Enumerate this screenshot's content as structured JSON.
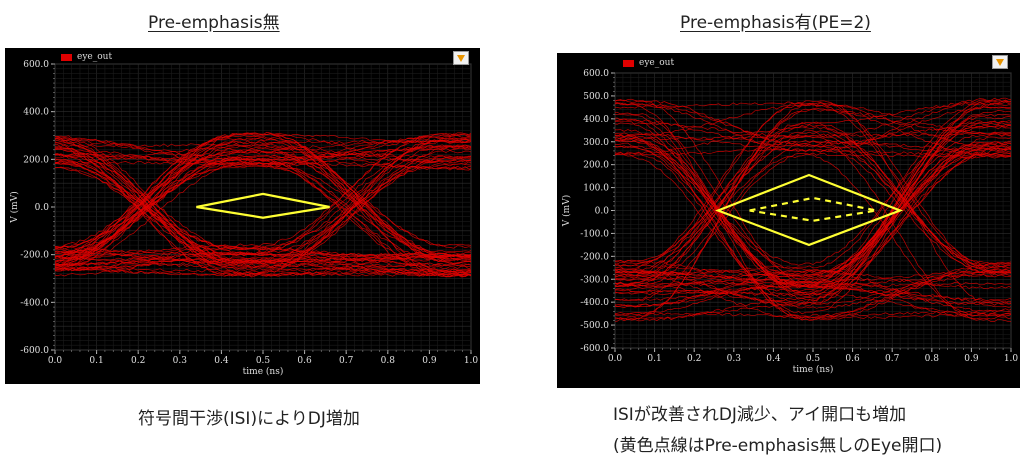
{
  "titles": {
    "left": "Pre-emphasis無",
    "right": "Pre-emphasis有(PE=2)"
  },
  "captions": {
    "left": "符号間干渉(ISI)によりDJ増加",
    "right_line1": "ISIが改善されDJ減少、アイ開口も増加",
    "right_line2": "(黄色点線はPre-emphasis無しのEye開口)"
  },
  "colors": {
    "trace": "#e00000",
    "eye_marker": "#ffff33",
    "background": "#000000"
  },
  "icons": {
    "filter": "filter-funnel-icon"
  },
  "chart_data": [
    {
      "type": "line",
      "chart_kind": "eye-diagram",
      "legend": [
        "eye_out"
      ],
      "legend_position": "top-left",
      "xlabel": "time (ns)",
      "ylabel": "V (mV)",
      "xlim": [
        0.0,
        1.0
      ],
      "ylim": [
        -600,
        600
      ],
      "xticks": [
        "0.0",
        "0.1",
        "0.2",
        "0.3",
        "0.4",
        "0.5",
        "0.6",
        "0.7",
        "0.8",
        "0.9",
        "1.0"
      ],
      "yticks": [
        "600.0",
        "400.0",
        "200.0",
        "0.0",
        "-200.0",
        "-400.0",
        "-600.0"
      ],
      "ytick_values": [
        600,
        400,
        200,
        0,
        -200,
        -400,
        -600
      ],
      "grid": true,
      "signal": {
        "high_levels": [
          160,
          310
        ],
        "low_levels": [
          -160,
          -290
        ],
        "crossings_ns": [
          0.22,
          0.72
        ]
      },
      "eye_opening": {
        "solid": [
          [
            0.34,
            0
          ],
          [
            0.5,
            55
          ],
          [
            0.66,
            0
          ],
          [
            0.5,
            -45
          ]
        ]
      }
    },
    {
      "type": "line",
      "chart_kind": "eye-diagram",
      "legend": [
        "eye_out"
      ],
      "legend_position": "top-left",
      "xlabel": "time (ns)",
      "ylabel": "V (mV)",
      "xlim": [
        0.0,
        1.0
      ],
      "ylim": [
        -600,
        600
      ],
      "xticks": [
        "0.0",
        "0.1",
        "0.2",
        "0.3",
        "0.4",
        "0.5",
        "0.6",
        "0.7",
        "0.8",
        "0.9",
        "1.0"
      ],
      "yticks": [
        "600.0",
        "500.0",
        "400.0",
        "300.0",
        "200.0",
        "100.0",
        "0.0",
        "-100.0",
        "-200.0",
        "-300.0",
        "-400.0",
        "-500.0",
        "-600.0"
      ],
      "ytick_values": [
        600,
        500,
        400,
        300,
        200,
        100,
        0,
        -100,
        -200,
        -300,
        -400,
        -500,
        -600
      ],
      "grid": true,
      "signal": {
        "high_levels": [
          230,
          490
        ],
        "low_levels": [
          -220,
          -480
        ],
        "crossings_ns": [
          0.26,
          0.72
        ]
      },
      "eye_opening": {
        "solid": [
          [
            0.26,
            0
          ],
          [
            0.49,
            155
          ],
          [
            0.72,
            0
          ],
          [
            0.49,
            -150
          ]
        ],
        "dashed": [
          [
            0.34,
            0
          ],
          [
            0.5,
            55
          ],
          [
            0.66,
            0
          ],
          [
            0.5,
            -45
          ]
        ]
      }
    }
  ]
}
